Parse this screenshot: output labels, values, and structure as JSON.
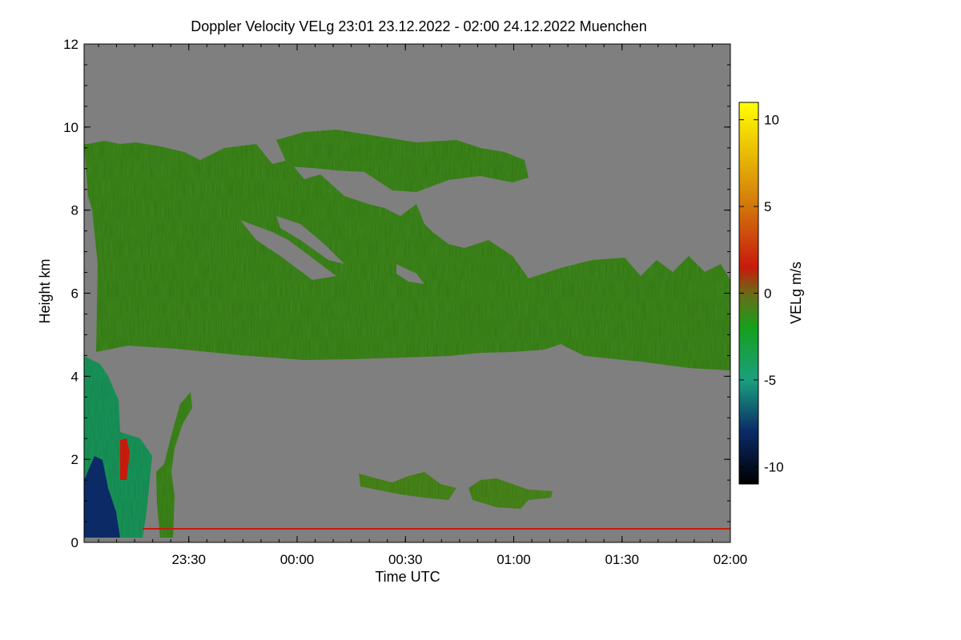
{
  "chart_data": {
    "type": "heatmap",
    "title": "Doppler Velocity VELg   23:01 23.12.2022 - 02:00 24.12.2022 Muenchen",
    "xlabel": "Time UTC",
    "ylabel": "Height km",
    "x_range_minutes": [
      -59,
      120
    ],
    "x_ticks": [
      {
        "label": "23:30",
        "value": -30
      },
      {
        "label": "00:00",
        "value": 0
      },
      {
        "label": "00:30",
        "value": 30
      },
      {
        "label": "01:00",
        "value": 60
      },
      {
        "label": "01:30",
        "value": 90
      },
      {
        "label": "02:00",
        "value": 120
      }
    ],
    "ylim": [
      0,
      12
    ],
    "y_ticks": [
      {
        "label": "0",
        "value": 0
      },
      {
        "label": "2",
        "value": 2
      },
      {
        "label": "4",
        "value": 4
      },
      {
        "label": "6",
        "value": 6
      },
      {
        "label": "8",
        "value": 8
      },
      {
        "label": "10",
        "value": 10
      },
      {
        "label": "12",
        "value": 12
      }
    ],
    "colorbar": {
      "label": "VELg m/s",
      "range": [
        -11,
        11
      ],
      "ticks": [
        {
          "label": "10",
          "value": 10
        },
        {
          "label": "5",
          "value": 5
        },
        {
          "label": "0",
          "value": 0
        },
        {
          "label": "-5",
          "value": -5
        },
        {
          "label": "-10",
          "value": -10
        }
      ],
      "stops": [
        {
          "value": -11,
          "color": "#000000"
        },
        {
          "value": -8,
          "color": "#0b2a66"
        },
        {
          "value": -5,
          "color": "#1aa07e"
        },
        {
          "value": -2,
          "color": "#16a01c"
        },
        {
          "value": 0,
          "color": "#6b6a16"
        },
        {
          "value": 1.5,
          "color": "#c81a0c"
        },
        {
          "value": 5,
          "color": "#d2760c"
        },
        {
          "value": 11,
          "color": "#ffff00"
        }
      ]
    },
    "background_color": "#7f7f7f",
    "regions": [
      {
        "name": "cirrus-layer",
        "t_start": -59,
        "t_end": 120,
        "z_bottom": 4.3,
        "z_top": 9.6,
        "velocity": -1,
        "color": "#3e8a1c"
      },
      {
        "name": "low-fall-streaks",
        "t_start": -59,
        "t_end": -27,
        "z_bottom": 0,
        "z_top": 4.2,
        "velocity": -4,
        "color": "#1a9a5c"
      },
      {
        "name": "near-surface-strong",
        "t_start": -59,
        "t_end": -46,
        "z_bottom": 0,
        "z_top": 1.4,
        "velocity": -8,
        "color": "#0b2a66"
      },
      {
        "name": "mid-level-patches",
        "t_start": 16,
        "t_end": 70,
        "z_bottom": 0.8,
        "z_top": 1.7,
        "velocity": -1,
        "color": "#4a8a1c"
      },
      {
        "name": "ground-clutter-line",
        "t_start": -44,
        "t_end": 120,
        "z_bottom": 0.25,
        "z_top": 0.3,
        "velocity": 1.5,
        "color": "#c81a0c"
      }
    ]
  }
}
